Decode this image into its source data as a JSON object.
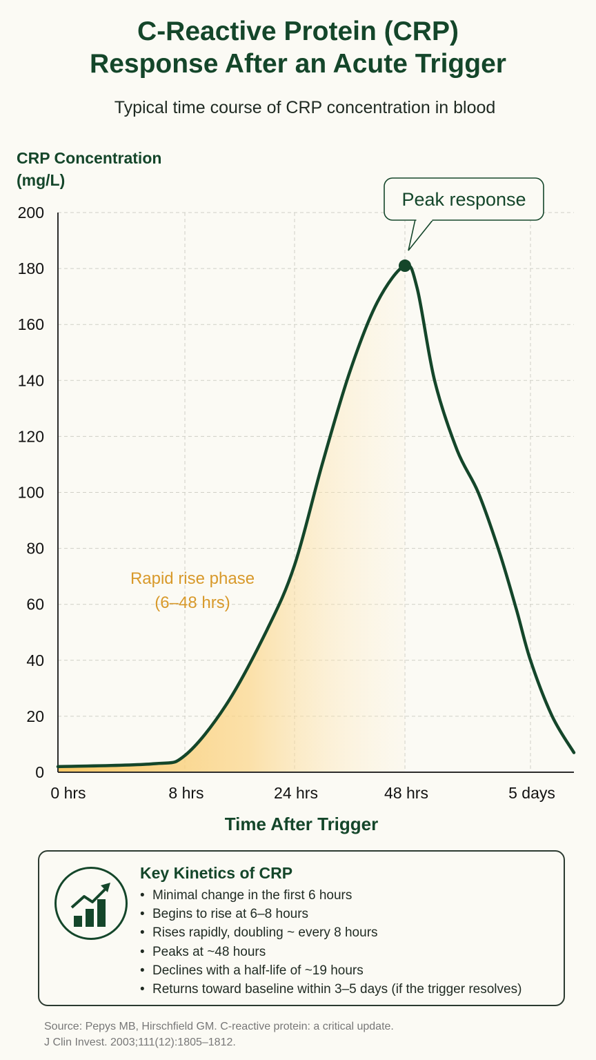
{
  "chart_data": {
    "type": "line",
    "title": "C-Reactive Protein (CRP) Response After an Acute Trigger",
    "title_lines": [
      "C-Reactive Protein (CRP)",
      "Response After an Acute Trigger"
    ],
    "subtitle": "Typical time course of CRP concentration in blood",
    "ylabel_lines": [
      "CRP Concentration",
      "(mg/L)"
    ],
    "xlabel": "Time After Trigger",
    "ylim": [
      0,
      200
    ],
    "yticks": [
      0,
      20,
      40,
      60,
      80,
      100,
      120,
      140,
      160,
      180,
      200
    ],
    "x_ticks": [
      {
        "label": "0 hrs",
        "hours": 0
      },
      {
        "label": "8 hrs",
        "hours": 8
      },
      {
        "label": "24 hrs",
        "hours": 24
      },
      {
        "label": "48 hrs",
        "hours": 48
      },
      {
        "label": "5 days",
        "hours": 120
      }
    ],
    "grid": true,
    "series": [
      {
        "color": "#14462a",
        "points": [
          {
            "hours": 0,
            "value": 2
          },
          {
            "hours": 6,
            "value": 3
          },
          {
            "hours": 8,
            "value": 6
          },
          {
            "hours": 14,
            "value": 24
          },
          {
            "hours": 20,
            "value": 51
          },
          {
            "hours": 24,
            "value": 74
          },
          {
            "hours": 30,
            "value": 110
          },
          {
            "hours": 36,
            "value": 143
          },
          {
            "hours": 42,
            "value": 168
          },
          {
            "hours": 48,
            "value": 181
          },
          {
            "hours": 55,
            "value": 173
          },
          {
            "hours": 65,
            "value": 140
          },
          {
            "hours": 78,
            "value": 115
          },
          {
            "hours": 90,
            "value": 100
          },
          {
            "hours": 102,
            "value": 79
          },
          {
            "hours": 112,
            "value": 58
          },
          {
            "hours": 120,
            "value": 40
          },
          {
            "hours": 126,
            "value": 20
          },
          {
            "hours": 132,
            "value": 7
          }
        ]
      }
    ],
    "annotations": [
      {
        "text": "Peak response",
        "hours": 48,
        "value": 181
      },
      {
        "text_lines": [
          "Rapid rise phase",
          "(6–48 hrs)"
        ],
        "color": "#d8992a"
      }
    ],
    "fill_color": "#f9c45c"
  },
  "kinetics": {
    "title": "Key Kinetics of CRP",
    "icon": "growth-chart-icon",
    "items": [
      "Minimal change in the first 6 hours",
      "Begins to rise at 6–8 hours",
      "Rises rapidly, doubling ~ every 8 hours",
      "Peaks at ~48 hours",
      "Declines with a half-life of ~19 hours",
      "Returns toward baseline within 3–5 days (if the trigger resolves)"
    ]
  },
  "source": [
    "Source: Pepys MB, Hirschfield GM. C-reactive protein: a critical update.",
    "J Clin Invest. 2003;111(12):1805–1812."
  ]
}
